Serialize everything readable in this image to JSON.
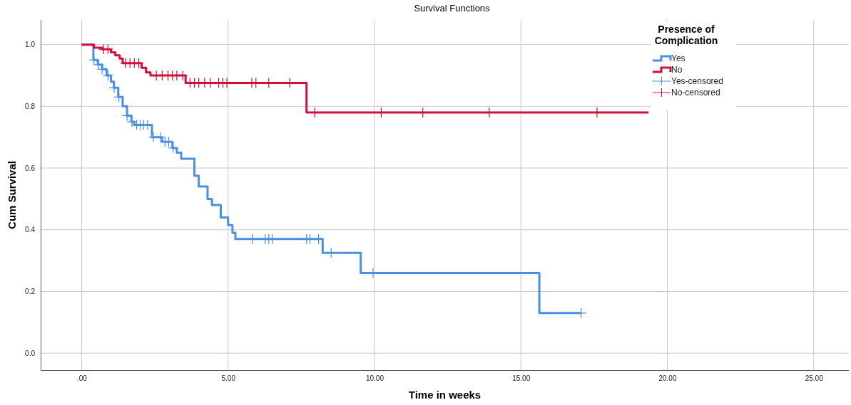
{
  "chart_data": {
    "type": "step",
    "title": "Survival Functions",
    "xlabel": "Time in weeks",
    "ylabel": "Cum Survival",
    "legend_title": "Presence of Complication",
    "xlim": [
      -1.4,
      26.2
    ],
    "ylim": [
      -0.055,
      1.08
    ],
    "xticks": [
      {
        "value": 0,
        "label": ".00"
      },
      {
        "value": 5,
        "label": "5.00"
      },
      {
        "value": 10,
        "label": "10.00"
      },
      {
        "value": 15,
        "label": "15.00"
      },
      {
        "value": 20,
        "label": "20.00"
      },
      {
        "value": 25,
        "label": "25.00"
      }
    ],
    "yticks": [
      {
        "value": 0,
        "label": "0.0"
      },
      {
        "value": 0.2,
        "label": "0.2"
      },
      {
        "value": 0.4,
        "label": "0.4"
      },
      {
        "value": 0.6,
        "label": "0.6"
      },
      {
        "value": 0.8,
        "label": "0.8"
      },
      {
        "value": 1,
        "label": "1.0"
      }
    ],
    "grid": true,
    "legend": "top right",
    "series": [
      {
        "name": "Yes",
        "color": "#4a90e2",
        "x": [
          0,
          0.4,
          0.55,
          0.7,
          0.85,
          1.0,
          1.1,
          1.25,
          1.4,
          1.55,
          1.7,
          1.8,
          2.4,
          2.75,
          3.1,
          3.25,
          3.4,
          3.85,
          4.0,
          4.3,
          4.45,
          4.75,
          5.0,
          5.15,
          5.25,
          8.23,
          9.53,
          15.63,
          17.06
        ],
        "values": [
          1.0,
          0.95,
          0.935,
          0.92,
          0.9,
          0.88,
          0.86,
          0.83,
          0.8,
          0.77,
          0.75,
          0.74,
          0.7,
          0.685,
          0.665,
          0.65,
          0.63,
          0.575,
          0.54,
          0.5,
          0.48,
          0.44,
          0.415,
          0.39,
          0.37,
          0.325,
          0.26,
          0.13,
          0.13
        ]
      },
      {
        "name": "No",
        "color": "#d0103a",
        "x": [
          0,
          0.42,
          0.7,
          1.0,
          1.15,
          1.3,
          1.4,
          2.05,
          2.2,
          2.35,
          3.55,
          7.68,
          19.36
        ],
        "values": [
          1.0,
          0.99,
          0.985,
          0.975,
          0.965,
          0.955,
          0.94,
          0.925,
          0.91,
          0.9,
          0.876,
          0.78,
          0.78
        ]
      },
      {
        "name": "Yes-censored",
        "type": "scatter",
        "marker": "cross",
        "color": "#4a90e2",
        "x": [
          0.42,
          0.58,
          0.7,
          0.9,
          1.11,
          1.27,
          1.55,
          1.72,
          1.88,
          2.0,
          2.12,
          2.25,
          2.45,
          2.69,
          2.85,
          2.97,
          3.13,
          5.83,
          6.27,
          6.39,
          6.51,
          7.68,
          7.8,
          8.09,
          8.52,
          9.95,
          17.06
        ],
        "values": [
          0.95,
          0.935,
          0.92,
          0.9,
          0.86,
          0.83,
          0.77,
          0.75,
          0.74,
          0.74,
          0.74,
          0.74,
          0.7,
          0.7,
          0.685,
          0.685,
          0.665,
          0.37,
          0.37,
          0.37,
          0.37,
          0.37,
          0.37,
          0.37,
          0.325,
          0.26,
          0.13
        ]
      },
      {
        "name": "No-censored",
        "type": "scatter",
        "marker": "cross",
        "color": "#d0103a",
        "x": [
          0.75,
          0.9,
          1.5,
          1.65,
          1.8,
          1.95,
          2.55,
          2.75,
          2.95,
          3.1,
          3.25,
          3.45,
          3.7,
          3.85,
          4.0,
          4.2,
          4.4,
          4.68,
          4.82,
          4.96,
          5.81,
          5.95,
          6.39,
          7.11,
          7.96,
          10.23,
          11.65,
          13.92,
          17.6
        ],
        "values": [
          0.985,
          0.985,
          0.94,
          0.94,
          0.94,
          0.94,
          0.9,
          0.9,
          0.9,
          0.9,
          0.9,
          0.9,
          0.876,
          0.876,
          0.876,
          0.876,
          0.876,
          0.876,
          0.876,
          0.876,
          0.876,
          0.876,
          0.876,
          0.876,
          0.78,
          0.78,
          0.78,
          0.78,
          0.78
        ]
      }
    ]
  }
}
